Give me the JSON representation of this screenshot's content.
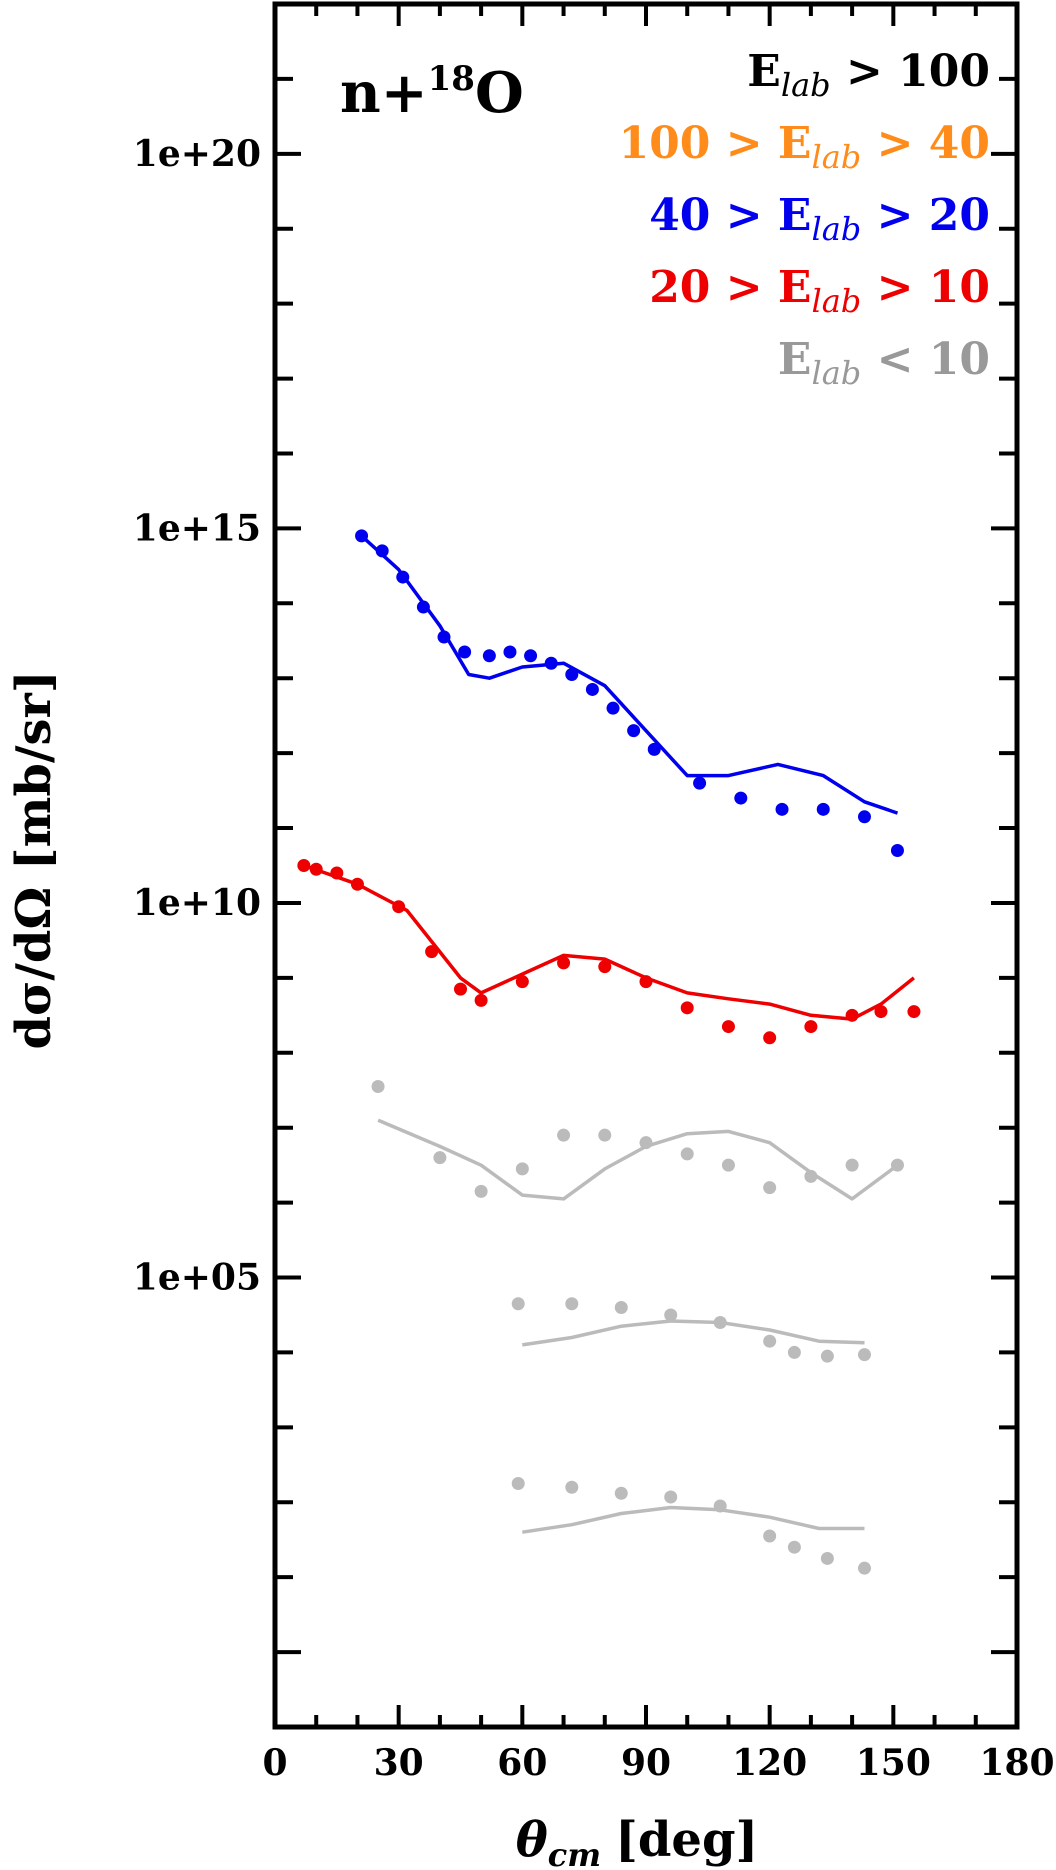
{
  "chart_data": {
    "type": "line",
    "title": "n+18O",
    "title_parts": {
      "base": "n+",
      "superscript": "18",
      "element": "O"
    },
    "xlabel": "θcm [deg]",
    "xlabel_parts": {
      "symbol": "θ",
      "subscript": "cm",
      "unit": "[deg]"
    },
    "ylabel": "dσ/dΩ [mb/sr]",
    "xlim": [
      0,
      180
    ],
    "ylim_log10": [
      -1,
      22
    ],
    "y_scale": "log",
    "x_ticks": [
      {
        "value": 0,
        "label": "0"
      },
      {
        "value": 30,
        "label": "30"
      },
      {
        "value": 60,
        "label": "60"
      },
      {
        "value": 90,
        "label": "90"
      },
      {
        "value": 120,
        "label": "120"
      },
      {
        "value": 150,
        "label": "150"
      },
      {
        "value": 180,
        "label": "180"
      }
    ],
    "y_ticks": [
      {
        "log10": 5,
        "label": "1e+05"
      },
      {
        "log10": 10,
        "label": "1e+10"
      },
      {
        "log10": 15,
        "label": "1e+15"
      },
      {
        "log10": 20,
        "label": "1e+20"
      }
    ],
    "legend": {
      "placement": "top-right",
      "entries": [
        {
          "left": "",
          "right": " > 100",
          "color": "#000000"
        },
        {
          "left": "100 > ",
          "right": " > 40",
          "color": "#ff8c1a"
        },
        {
          "left": "40 > ",
          "right": " > 20",
          "color": "#0000ee"
        },
        {
          "left": "20 > ",
          "right": " > 10",
          "color": "#ee0000"
        },
        {
          "left": "",
          "right": " < 10",
          "color": "#999999"
        }
      ],
      "symbol": "E",
      "subscript": "lab"
    },
    "series": [
      {
        "color": "#0000ee",
        "points": [
          {
            "x": 21,
            "y": 14.9
          },
          {
            "x": 26,
            "y": 14.7
          },
          {
            "x": 31,
            "y": 14.35
          },
          {
            "x": 36,
            "y": 13.95
          },
          {
            "x": 41,
            "y": 13.55
          },
          {
            "x": 46,
            "y": 13.35
          },
          {
            "x": 52,
            "y": 13.3
          },
          {
            "x": 57,
            "y": 13.35
          },
          {
            "x": 62,
            "y": 13.3
          },
          {
            "x": 67,
            "y": 13.2
          },
          {
            "x": 72,
            "y": 13.05
          },
          {
            "x": 77,
            "y": 12.85
          },
          {
            "x": 82,
            "y": 12.6
          },
          {
            "x": 87,
            "y": 12.3
          },
          {
            "x": 92,
            "y": 12.05
          },
          {
            "x": 103,
            "y": 11.6
          },
          {
            "x": 113,
            "y": 11.4
          },
          {
            "x": 123,
            "y": 11.25
          },
          {
            "x": 133,
            "y": 11.25
          },
          {
            "x": 143,
            "y": 11.15
          },
          {
            "x": 151,
            "y": 10.7
          }
        ],
        "curve": [
          {
            "x": 21,
            "y": 14.9
          },
          {
            "x": 30,
            "y": 14.45
          },
          {
            "x": 40,
            "y": 13.7
          },
          {
            "x": 47,
            "y": 13.05
          },
          {
            "x": 52,
            "y": 13.0
          },
          {
            "x": 60,
            "y": 13.15
          },
          {
            "x": 70,
            "y": 13.2
          },
          {
            "x": 80,
            "y": 12.9
          },
          {
            "x": 90,
            "y": 12.3
          },
          {
            "x": 100,
            "y": 11.7
          },
          {
            "x": 110,
            "y": 11.7
          },
          {
            "x": 122,
            "y": 11.85
          },
          {
            "x": 133,
            "y": 11.7
          },
          {
            "x": 143,
            "y": 11.35
          },
          {
            "x": 151,
            "y": 11.2
          }
        ]
      },
      {
        "color": "#ee0000",
        "points": [
          {
            "x": 7,
            "y": 10.5
          },
          {
            "x": 10,
            "y": 10.45
          },
          {
            "x": 15,
            "y": 10.4
          },
          {
            "x": 20,
            "y": 10.25
          },
          {
            "x": 30,
            "y": 9.95
          },
          {
            "x": 38,
            "y": 9.35
          },
          {
            "x": 45,
            "y": 8.85
          },
          {
            "x": 50,
            "y": 8.7
          },
          {
            "x": 60,
            "y": 8.95
          },
          {
            "x": 70,
            "y": 9.2
          },
          {
            "x": 80,
            "y": 9.15
          },
          {
            "x": 90,
            "y": 8.95
          },
          {
            "x": 100,
            "y": 8.6
          },
          {
            "x": 110,
            "y": 8.35
          },
          {
            "x": 120,
            "y": 8.2
          },
          {
            "x": 130,
            "y": 8.35
          },
          {
            "x": 140,
            "y": 8.5
          },
          {
            "x": 147,
            "y": 8.55
          },
          {
            "x": 155,
            "y": 8.55
          }
        ],
        "curve": [
          {
            "x": 7,
            "y": 10.5
          },
          {
            "x": 20,
            "y": 10.25
          },
          {
            "x": 32,
            "y": 9.9
          },
          {
            "x": 45,
            "y": 9.0
          },
          {
            "x": 50,
            "y": 8.8
          },
          {
            "x": 60,
            "y": 9.05
          },
          {
            "x": 70,
            "y": 9.3
          },
          {
            "x": 80,
            "y": 9.25
          },
          {
            "x": 90,
            "y": 9.0
          },
          {
            "x": 100,
            "y": 8.8
          },
          {
            "x": 110,
            "y": 8.72
          },
          {
            "x": 120,
            "y": 8.65
          },
          {
            "x": 130,
            "y": 8.5
          },
          {
            "x": 140,
            "y": 8.45
          },
          {
            "x": 147,
            "y": 8.65
          },
          {
            "x": 155,
            "y": 9.0
          }
        ]
      },
      {
        "color": "#bbbbbb",
        "points": [
          {
            "x": 25,
            "y": 7.55
          },
          {
            "x": 40,
            "y": 6.6
          },
          {
            "x": 50,
            "y": 6.15
          },
          {
            "x": 60,
            "y": 6.45
          },
          {
            "x": 70,
            "y": 6.9
          },
          {
            "x": 80,
            "y": 6.9
          },
          {
            "x": 90,
            "y": 6.8
          },
          {
            "x": 100,
            "y": 6.65
          },
          {
            "x": 110,
            "y": 6.5
          },
          {
            "x": 120,
            "y": 6.2
          },
          {
            "x": 130,
            "y": 6.35
          },
          {
            "x": 140,
            "y": 6.5
          },
          {
            "x": 151,
            "y": 6.5
          }
        ],
        "curve": [
          {
            "x": 25,
            "y": 7.1
          },
          {
            "x": 40,
            "y": 6.75
          },
          {
            "x": 50,
            "y": 6.5
          },
          {
            "x": 60,
            "y": 6.1
          },
          {
            "x": 70,
            "y": 6.05
          },
          {
            "x": 80,
            "y": 6.45
          },
          {
            "x": 90,
            "y": 6.75
          },
          {
            "x": 100,
            "y": 6.92
          },
          {
            "x": 110,
            "y": 6.95
          },
          {
            "x": 120,
            "y": 6.8
          },
          {
            "x": 130,
            "y": 6.4
          },
          {
            "x": 140,
            "y": 6.05
          },
          {
            "x": 151,
            "y": 6.5
          }
        ]
      },
      {
        "color": "#bbbbbb",
        "points": [
          {
            "x": 59,
            "y": 4.65
          },
          {
            "x": 72,
            "y": 4.65
          },
          {
            "x": 84,
            "y": 4.6
          },
          {
            "x": 96,
            "y": 4.5
          },
          {
            "x": 108,
            "y": 4.4
          },
          {
            "x": 120,
            "y": 4.15
          },
          {
            "x": 126,
            "y": 4.0
          },
          {
            "x": 134,
            "y": 3.95
          },
          {
            "x": 143,
            "y": 3.97
          }
        ],
        "curve": [
          {
            "x": 60,
            "y": 4.1
          },
          {
            "x": 72,
            "y": 4.2
          },
          {
            "x": 84,
            "y": 4.35
          },
          {
            "x": 96,
            "y": 4.42
          },
          {
            "x": 108,
            "y": 4.4
          },
          {
            "x": 120,
            "y": 4.3
          },
          {
            "x": 132,
            "y": 4.15
          },
          {
            "x": 143,
            "y": 4.13
          }
        ]
      },
      {
        "color": "#bbbbbb",
        "points": [
          {
            "x": 59,
            "y": 2.25
          },
          {
            "x": 72,
            "y": 2.2
          },
          {
            "x": 84,
            "y": 2.12
          },
          {
            "x": 96,
            "y": 2.07
          },
          {
            "x": 108,
            "y": 1.95
          },
          {
            "x": 120,
            "y": 1.55
          },
          {
            "x": 126,
            "y": 1.4
          },
          {
            "x": 134,
            "y": 1.25
          },
          {
            "x": 143,
            "y": 1.12
          }
        ],
        "curve": [
          {
            "x": 60,
            "y": 1.6
          },
          {
            "x": 72,
            "y": 1.7
          },
          {
            "x": 84,
            "y": 1.85
          },
          {
            "x": 96,
            "y": 1.93
          },
          {
            "x": 108,
            "y": 1.9
          },
          {
            "x": 120,
            "y": 1.8
          },
          {
            "x": 132,
            "y": 1.65
          },
          {
            "x": 143,
            "y": 1.65
          }
        ]
      }
    ]
  }
}
